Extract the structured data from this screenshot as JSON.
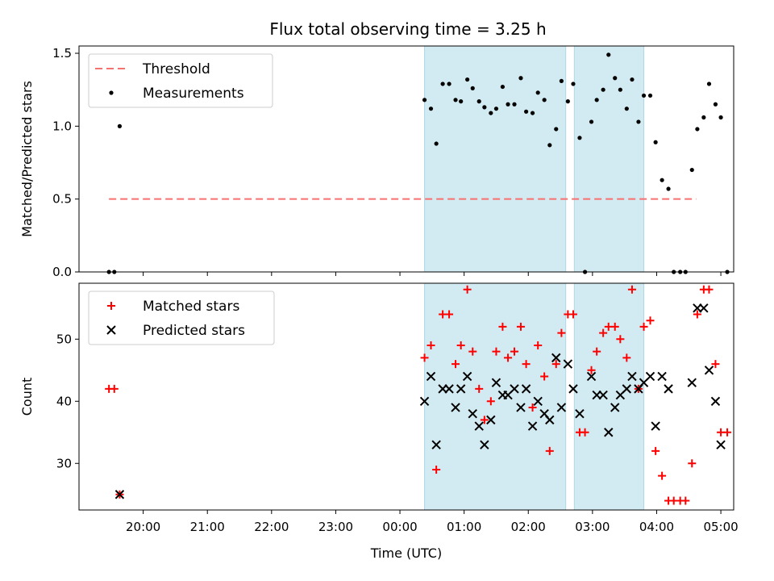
{
  "figure_title": "Flux total observing time = 3.25 h",
  "colors": {
    "threshold": "#f87171",
    "measurement": "#000000",
    "matched": "#ff0000",
    "predicted": "#000000",
    "shade": "#add8e6"
  },
  "chart_data": [
    {
      "type": "scatter",
      "title": "",
      "xlabel": "",
      "ylabel": "Matched/Predicted stars",
      "xlim": [
        "19:00",
        "05:00 (+1 day)"
      ],
      "ylim": [
        0,
        1.55
      ],
      "yticks": [
        "0.0",
        "0.5",
        "1.0",
        "1.5"
      ],
      "grid": false,
      "legend": {
        "position": "top-left",
        "entries": [
          "Threshold",
          "Measurements"
        ]
      },
      "shaded_intervals": [
        [
          "00:23",
          "02:35"
        ],
        [
          "02:43",
          "03:48"
        ]
      ],
      "threshold": {
        "name": "Threshold",
        "y": 0.5,
        "x_start": "19:28",
        "x_end": "04:37",
        "style": "dashed"
      },
      "series": [
        {
          "name": "Measurements",
          "marker": "dot",
          "points": [
            [
              "19:28",
              0.0
            ],
            [
              "19:33",
              0.0
            ],
            [
              "19:38",
              1.0
            ],
            [
              "00:23",
              1.18
            ],
            [
              "00:29",
              1.12
            ],
            [
              "00:34",
              0.88
            ],
            [
              "00:40",
              1.29
            ],
            [
              "00:46",
              1.29
            ],
            [
              "00:52",
              1.18
            ],
            [
              "00:57",
              1.17
            ],
            [
              "01:03",
              1.32
            ],
            [
              "01:08",
              1.26
            ],
            [
              "01:14",
              1.17
            ],
            [
              "01:19",
              1.13
            ],
            [
              "01:25",
              1.09
            ],
            [
              "01:30",
              1.12
            ],
            [
              "01:36",
              1.27
            ],
            [
              "01:41",
              1.15
            ],
            [
              "01:47",
              1.15
            ],
            [
              "01:53",
              1.33
            ],
            [
              "01:58",
              1.1
            ],
            [
              "02:04",
              1.09
            ],
            [
              "02:09",
              1.23
            ],
            [
              "02:15",
              1.18
            ],
            [
              "02:20",
              0.87
            ],
            [
              "02:26",
              0.98
            ],
            [
              "02:31",
              1.31
            ],
            [
              "02:37",
              1.17
            ],
            [
              "02:42",
              1.29
            ],
            [
              "02:48",
              0.92
            ],
            [
              "02:53",
              0.0
            ],
            [
              "02:59",
              1.03
            ],
            [
              "03:04",
              1.18
            ],
            [
              "03:10",
              1.25
            ],
            [
              "03:15",
              1.49
            ],
            [
              "03:21",
              1.33
            ],
            [
              "03:26",
              1.25
            ],
            [
              "03:32",
              1.12
            ],
            [
              "03:37",
              1.32
            ],
            [
              "03:43",
              1.03
            ],
            [
              "03:48",
              1.21
            ],
            [
              "03:54",
              1.21
            ],
            [
              "03:59",
              0.89
            ],
            [
              "04:05",
              0.63
            ],
            [
              "04:11",
              0.57
            ],
            [
              "04:16",
              0.0
            ],
            [
              "04:22",
              0.0
            ],
            [
              "04:27",
              0.0
            ],
            [
              "04:33",
              0.7
            ],
            [
              "04:38",
              0.98
            ],
            [
              "04:44",
              1.06
            ],
            [
              "04:49",
              1.29
            ],
            [
              "04:55",
              1.15
            ],
            [
              "05:00",
              1.06
            ],
            [
              "05:06",
              0.0
            ]
          ]
        }
      ]
    },
    {
      "type": "scatter",
      "title": "",
      "xlabel": "Time (UTC)",
      "ylabel": "Count",
      "xlim": [
        "19:00",
        "05:00 (+1 day)"
      ],
      "xticks": [
        "20:00",
        "21:00",
        "22:00",
        "23:00",
        "00:00",
        "01:00",
        "02:00",
        "03:00",
        "04:00",
        "05:00"
      ],
      "ylim": [
        22.5,
        59
      ],
      "yticks": [
        "30",
        "40",
        "50"
      ],
      "grid": false,
      "legend": {
        "position": "top-left",
        "entries": [
          "Matched stars",
          "Predicted stars"
        ]
      },
      "shaded_intervals": [
        [
          "00:23",
          "02:35"
        ],
        [
          "02:43",
          "03:48"
        ]
      ],
      "series": [
        {
          "name": "Matched stars",
          "marker": "plus",
          "points": [
            [
              "19:28",
              42
            ],
            [
              "19:33",
              42
            ],
            [
              "19:38",
              25
            ],
            [
              "00:23",
              47
            ],
            [
              "00:29",
              49
            ],
            [
              "00:34",
              29
            ],
            [
              "00:40",
              54
            ],
            [
              "00:46",
              54
            ],
            [
              "00:52",
              46
            ],
            [
              "00:57",
              49
            ],
            [
              "01:03",
              58
            ],
            [
              "01:08",
              48
            ],
            [
              "01:14",
              42
            ],
            [
              "01:19",
              37
            ],
            [
              "01:25",
              40
            ],
            [
              "01:30",
              48
            ],
            [
              "01:36",
              52
            ],
            [
              "01:41",
              47
            ],
            [
              "01:47",
              48
            ],
            [
              "01:53",
              52
            ],
            [
              "01:58",
              46
            ],
            [
              "02:04",
              39
            ],
            [
              "02:09",
              49
            ],
            [
              "02:15",
              44
            ],
            [
              "02:20",
              32
            ],
            [
              "02:26",
              46
            ],
            [
              "02:31",
              51
            ],
            [
              "02:37",
              54
            ],
            [
              "02:42",
              54
            ],
            [
              "02:48",
              35
            ],
            [
              "02:53",
              35
            ],
            [
              "02:59",
              45
            ],
            [
              "03:04",
              48
            ],
            [
              "03:10",
              51
            ],
            [
              "03:15",
              52
            ],
            [
              "03:21",
              52
            ],
            [
              "03:26",
              50
            ],
            [
              "03:32",
              47
            ],
            [
              "03:37",
              58
            ],
            [
              "03:43",
              42
            ],
            [
              "03:48",
              52
            ],
            [
              "03:54",
              53
            ],
            [
              "03:59",
              32
            ],
            [
              "04:05",
              28
            ],
            [
              "04:11",
              24
            ],
            [
              "04:16",
              24
            ],
            [
              "04:22",
              24
            ],
            [
              "04:27",
              24
            ],
            [
              "04:33",
              30
            ],
            [
              "04:38",
              54
            ],
            [
              "04:44",
              58
            ],
            [
              "04:49",
              58
            ],
            [
              "04:55",
              46
            ],
            [
              "05:00",
              35
            ],
            [
              "05:06",
              35
            ]
          ]
        },
        {
          "name": "Predicted stars",
          "marker": "x",
          "points": [
            [
              "19:38",
              25
            ],
            [
              "00:23",
              40
            ],
            [
              "00:29",
              44
            ],
            [
              "00:34",
              33
            ],
            [
              "00:40",
              42
            ],
            [
              "00:46",
              42
            ],
            [
              "00:52",
              39
            ],
            [
              "00:57",
              42
            ],
            [
              "01:03",
              44
            ],
            [
              "01:08",
              38
            ],
            [
              "01:14",
              36
            ],
            [
              "01:19",
              33
            ],
            [
              "01:25",
              37
            ],
            [
              "01:30",
              43
            ],
            [
              "01:36",
              41
            ],
            [
              "01:41",
              41
            ],
            [
              "01:47",
              42
            ],
            [
              "01:53",
              39
            ],
            [
              "01:58",
              42
            ],
            [
              "02:04",
              36
            ],
            [
              "02:09",
              40
            ],
            [
              "02:15",
              38
            ],
            [
              "02:20",
              37
            ],
            [
              "02:26",
              47
            ],
            [
              "02:31",
              39
            ],
            [
              "02:37",
              46
            ],
            [
              "02:42",
              42
            ],
            [
              "02:48",
              38
            ],
            [
              "02:59",
              44
            ],
            [
              "03:04",
              41
            ],
            [
              "03:10",
              41
            ],
            [
              "03:15",
              35
            ],
            [
              "03:21",
              39
            ],
            [
              "03:26",
              41
            ],
            [
              "03:32",
              42
            ],
            [
              "03:37",
              44
            ],
            [
              "03:43",
              42
            ],
            [
              "03:48",
              43
            ],
            [
              "03:54",
              44
            ],
            [
              "03:59",
              36
            ],
            [
              "04:05",
              44
            ],
            [
              "04:11",
              42
            ],
            [
              "04:33",
              43
            ],
            [
              "04:38",
              55
            ],
            [
              "04:44",
              55
            ],
            [
              "04:49",
              45
            ],
            [
              "04:55",
              40
            ],
            [
              "05:00",
              33
            ]
          ]
        }
      ]
    }
  ]
}
